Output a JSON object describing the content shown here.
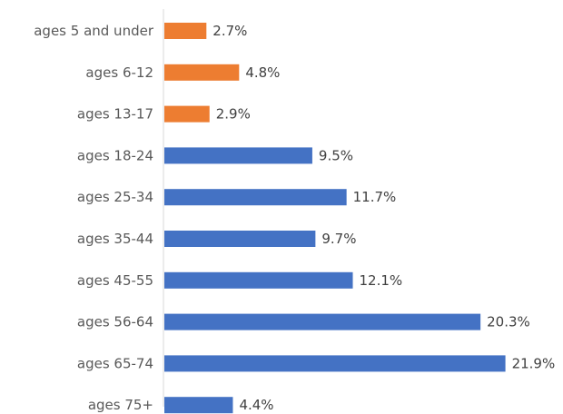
{
  "chart_data": {
    "type": "bar",
    "orientation": "horizontal",
    "categories": [
      "ages 5 and under",
      "ages 6-12",
      "ages 13-17",
      "ages 18-24",
      "ages 25-34",
      "ages 35-44",
      "ages 45-55",
      "ages 56-64",
      "ages 65-74",
      "ages 75+"
    ],
    "values": [
      2.7,
      4.8,
      2.9,
      9.5,
      11.7,
      9.7,
      12.1,
      20.3,
      21.9,
      4.4
    ],
    "value_labels": [
      "2.7%",
      "4.8%",
      "2.9%",
      "9.5%",
      "11.7%",
      "9.7%",
      "12.1%",
      "20.3%",
      "21.9%",
      "4.4%"
    ],
    "bar_colors": [
      "#ED7D31",
      "#ED7D31",
      "#ED7D31",
      "#4472C4",
      "#4472C4",
      "#4472C4",
      "#4472C4",
      "#4472C4",
      "#4472C4",
      "#4472C4"
    ],
    "title": "",
    "xlabel": "",
    "ylabel": "",
    "xlim": [
      0,
      22
    ],
    "grid": false,
    "legend": "none"
  }
}
